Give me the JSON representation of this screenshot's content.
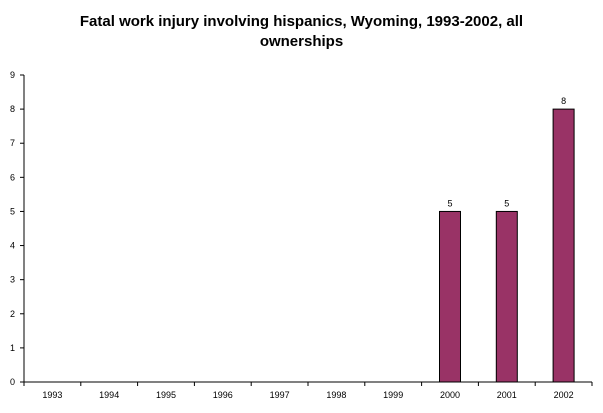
{
  "chart_data": {
    "type": "bar",
    "title": "Fatal work injury involving hispanics, Wyoming, 1993-2002, all ownerships",
    "xlabel": "",
    "ylabel": "",
    "categories": [
      "1993",
      "1994",
      "1995",
      "1996",
      "1997",
      "1998",
      "1999",
      "2000",
      "2001",
      "2002"
    ],
    "values": [
      0,
      0,
      0,
      0,
      0,
      0,
      0,
      5,
      5,
      8
    ],
    "data_labels": [
      "",
      "",
      "",
      "",
      "",
      "",
      "",
      "5",
      "5",
      "8"
    ],
    "ylim": [
      0,
      9
    ],
    "yticks": [
      "0",
      "1",
      "2",
      "3",
      "4",
      "5",
      "6",
      "7",
      "8",
      "9"
    ],
    "grid": false,
    "legend": "none",
    "colors": {
      "bar": "#993366",
      "bar_stroke": "#000000",
      "axis": "#000000"
    }
  }
}
